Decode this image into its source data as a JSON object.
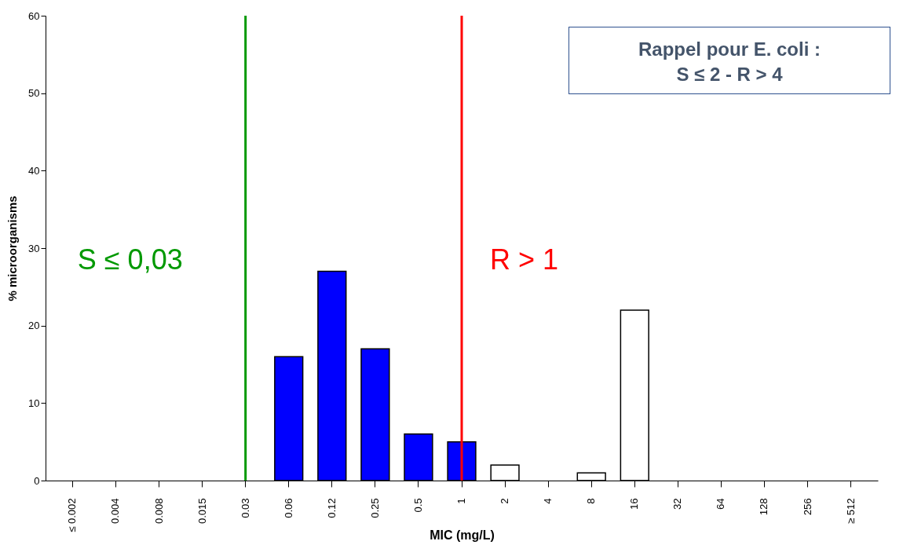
{
  "chart_data": {
    "type": "bar",
    "xlabel": "MIC (mg/L)",
    "ylabel": "% microorganisms",
    "categories": [
      "≤ 0.002",
      "0.004",
      "0.008",
      "0.015",
      "0.03",
      "0.06",
      "0.12",
      "0.25",
      "0.5",
      "1",
      "2",
      "4",
      "8",
      "16",
      "32",
      "64",
      "128",
      "256",
      "≥ 512"
    ],
    "values": [
      0,
      0,
      0,
      0,
      0,
      16,
      27,
      17,
      6,
      5,
      2,
      0,
      1,
      22,
      0,
      0,
      0,
      0,
      0
    ],
    "colors": [
      "#0000ff",
      "#0000ff",
      "#0000ff",
      "#0000ff",
      "#0000ff",
      "#0000ff",
      "#0000ff",
      "#0000ff",
      "#0000ff",
      "#0000ff",
      "#ffffff",
      "#ffffff",
      "#ffffff",
      "#ffffff",
      "#ffffff",
      "#ffffff",
      "#ffffff",
      "#ffffff",
      "#ffffff"
    ],
    "ylim": [
      0,
      60
    ],
    "yticks": [
      0,
      10,
      20,
      30,
      40,
      50,
      60
    ],
    "grid": false,
    "ref_lines": [
      {
        "axis": "x",
        "value": "0.03",
        "label": "S ≤ 0,03",
        "color": "#009900"
      },
      {
        "axis": "x",
        "value": "1",
        "label": "R > 1",
        "color": "#ff0000"
      }
    ],
    "annotations": [
      "Rappel pour E. coli  :",
      "S ≤ 2  -  R > 4"
    ]
  }
}
